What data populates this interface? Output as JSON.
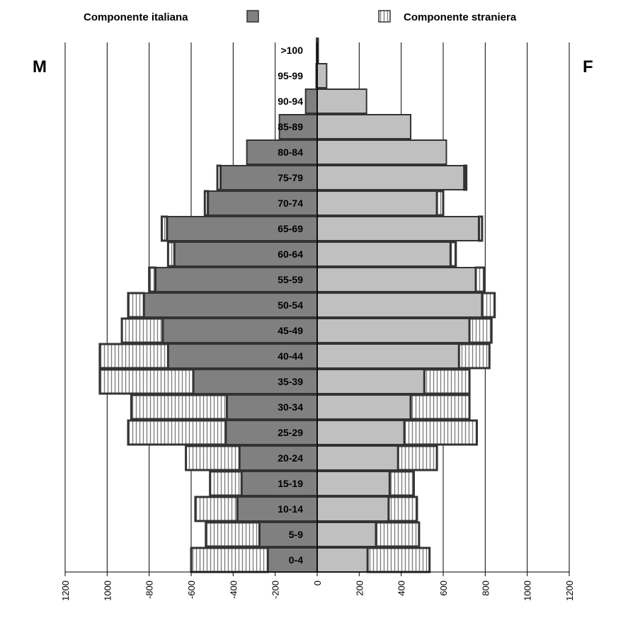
{
  "chart_data": {
    "type": "bar",
    "orientation": "horizontal",
    "layout": "population-pyramid",
    "categories": [
      "0-4",
      "5-9",
      "10-14",
      "15-19",
      "20-24",
      "25-29",
      "30-34",
      "35-39",
      "40-44",
      "45-49",
      "50-54",
      "55-59",
      "60-64",
      "65-69",
      "70-74",
      "75-79",
      "80-84",
      "85-89",
      "90-94",
      "95-99",
      ">100"
    ],
    "left_label": "M",
    "right_label": "F",
    "legend": {
      "position": "top",
      "items": [
        {
          "label": "Componente italiana",
          "swatch": "solid"
        },
        {
          "label": "Componente straniera",
          "swatch": "striped"
        }
      ]
    },
    "xlim": [
      -1200,
      1200
    ],
    "x_ticks": [
      -1200,
      -1000,
      -800,
      -600,
      -400,
      -200,
      0,
      200,
      400,
      600,
      800,
      1000,
      1200
    ],
    "x_tick_labels": [
      "1200",
      "1000",
      "-800",
      "-600",
      "-400",
      "-200",
      "0",
      "200",
      "400",
      "600",
      "800",
      "1000",
      "1200"
    ],
    "grid": true,
    "series": [
      {
        "name": "Componente italiana",
        "side": "M",
        "values": [
          235,
          275,
          380,
          360,
          370,
          435,
          430,
          590,
          710,
          735,
          825,
          770,
          680,
          715,
          520,
          460,
          335,
          180,
          55,
          5,
          3
        ]
      },
      {
        "name": "Componente straniera",
        "side": "M",
        "values": [
          365,
          255,
          200,
          150,
          255,
          465,
          455,
          445,
          325,
          195,
          75,
          30,
          30,
          25,
          15,
          15,
          0,
          0,
          0,
          0,
          0
        ]
      },
      {
        "name": "Componente italiana",
        "side": "F",
        "values": [
          240,
          280,
          340,
          345,
          385,
          415,
          445,
          510,
          675,
          725,
          785,
          755,
          635,
          770,
          570,
          700,
          615,
          445,
          235,
          45,
          5
        ]
      },
      {
        "name": "Componente straniera",
        "side": "F",
        "values": [
          295,
          205,
          135,
          115,
          185,
          345,
          280,
          215,
          145,
          105,
          60,
          40,
          25,
          15,
          30,
          10,
          0,
          0,
          0,
          0,
          0
        ]
      }
    ],
    "colors": {
      "male_bar": "#808080",
      "female_bar": "#c0c0c0",
      "stripe_bg": "#ffffff",
      "stripe_line": "#7f7f7f",
      "outline": "#333333"
    }
  }
}
